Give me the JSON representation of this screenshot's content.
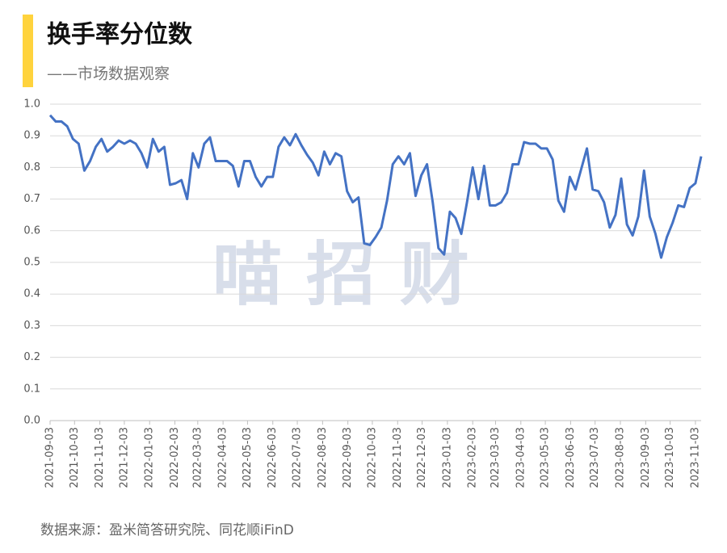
{
  "chart_data": {
    "type": "line",
    "title": "换手率分位数",
    "subtitle": "——市场数据观察",
    "watermark": "喵 招 财",
    "source": "数据来源：盈米简答研究院、同花顺iFinD",
    "x": [
      0,
      7,
      14,
      21,
      28,
      35,
      42,
      49,
      56,
      63,
      70,
      77,
      84,
      91,
      98,
      105,
      112,
      119,
      126,
      133,
      140,
      147,
      154,
      161,
      168,
      175,
      182,
      189,
      196,
      203,
      210,
      217,
      224,
      231,
      238,
      245,
      252,
      259,
      266,
      273,
      280,
      287,
      294,
      301,
      308,
      315,
      322,
      329,
      336,
      343,
      350,
      357,
      364,
      371,
      378,
      385,
      392,
      399,
      406,
      413,
      420,
      427,
      434,
      441,
      448,
      455,
      462,
      469,
      476,
      483,
      490,
      497,
      504,
      511,
      518,
      525,
      532,
      539,
      546,
      553,
      560,
      567,
      574,
      581,
      588,
      595,
      602,
      609,
      616,
      623,
      630,
      637,
      644,
      651,
      658,
      665,
      672,
      679,
      686,
      693,
      700,
      707,
      714,
      721,
      728,
      735,
      742,
      749,
      756,
      763,
      770,
      777,
      784,
      791,
      798
    ],
    "series": [
      {
        "name": "换手率分位数",
        "color": "#4472c4",
        "values": [
          0.965,
          0.945,
          0.945,
          0.93,
          0.89,
          0.875,
          0.79,
          0.82,
          0.865,
          0.89,
          0.85,
          0.865,
          0.885,
          0.875,
          0.885,
          0.875,
          0.845,
          0.8,
          0.89,
          0.85,
          0.865,
          0.745,
          0.75,
          0.76,
          0.7,
          0.845,
          0.8,
          0.875,
          0.895,
          0.82,
          0.82,
          0.82,
          0.805,
          0.74,
          0.82,
          0.82,
          0.77,
          0.74,
          0.77,
          0.77,
          0.865,
          0.895,
          0.87,
          0.905,
          0.87,
          0.84,
          0.815,
          0.775,
          0.85,
          0.81,
          0.845,
          0.835,
          0.725,
          0.69,
          0.705,
          0.56,
          0.555,
          0.58,
          0.61,
          0.695,
          0.81,
          0.835,
          0.81,
          0.845,
          0.71,
          0.775,
          0.81,
          0.69,
          0.545,
          0.525,
          0.66,
          0.64,
          0.59,
          0.69,
          0.8,
          0.7,
          0.805,
          0.68,
          0.68,
          0.69,
          0.72,
          0.81,
          0.81,
          0.88,
          0.875,
          0.875,
          0.86,
          0.86,
          0.825,
          0.695,
          0.66,
          0.77,
          0.73,
          0.795,
          0.86,
          0.73,
          0.725,
          0.69,
          0.61,
          0.65,
          0.765,
          0.62,
          0.585,
          0.645,
          0.79,
          0.645,
          0.59,
          0.515,
          0.58,
          0.625,
          0.68,
          0.675,
          0.735,
          0.75,
          0.835
        ]
      }
    ],
    "xlim": [
      0,
      798
    ],
    "xticks": [
      {
        "value": 0,
        "label": "2021-09-03"
      },
      {
        "value": 30,
        "label": "2021-10-03"
      },
      {
        "value": 61,
        "label": "2021-11-03"
      },
      {
        "value": 91,
        "label": "2021-12-03"
      },
      {
        "value": 122,
        "label": "2022-01-03"
      },
      {
        "value": 153,
        "label": "2022-02-03"
      },
      {
        "value": 181,
        "label": "2022-03-03"
      },
      {
        "value": 212,
        "label": "2022-04-03"
      },
      {
        "value": 242,
        "label": "2022-05-03"
      },
      {
        "value": 273,
        "label": "2022-06-03"
      },
      {
        "value": 303,
        "label": "2022-07-03"
      },
      {
        "value": 334,
        "label": "2022-08-03"
      },
      {
        "value": 365,
        "label": "2022-09-03"
      },
      {
        "value": 395,
        "label": "2022-10-03"
      },
      {
        "value": 426,
        "label": "2022-11-03"
      },
      {
        "value": 456,
        "label": "2022-12-03"
      },
      {
        "value": 487,
        "label": "2023-01-03"
      },
      {
        "value": 518,
        "label": "2023-02-03"
      },
      {
        "value": 546,
        "label": "2023-03-03"
      },
      {
        "value": 577,
        "label": "2023-04-03"
      },
      {
        "value": 607,
        "label": "2023-05-03"
      },
      {
        "value": 638,
        "label": "2023-06-03"
      },
      {
        "value": 668,
        "label": "2023-07-03"
      },
      {
        "value": 699,
        "label": "2023-08-03"
      },
      {
        "value": 730,
        "label": "2023-09-03"
      },
      {
        "value": 760,
        "label": "2023-10-03"
      },
      {
        "value": 791,
        "label": "2023-11-03"
      }
    ],
    "ylim": [
      0,
      1
    ],
    "yticks": [
      {
        "value": 0,
        "label": "0.0"
      },
      0.1,
      0.2,
      0.3,
      0.4,
      0.5,
      0.6,
      0.7,
      0.8,
      0.9,
      {
        "value": 1,
        "label": "1.0"
      }
    ],
    "grid": true
  }
}
